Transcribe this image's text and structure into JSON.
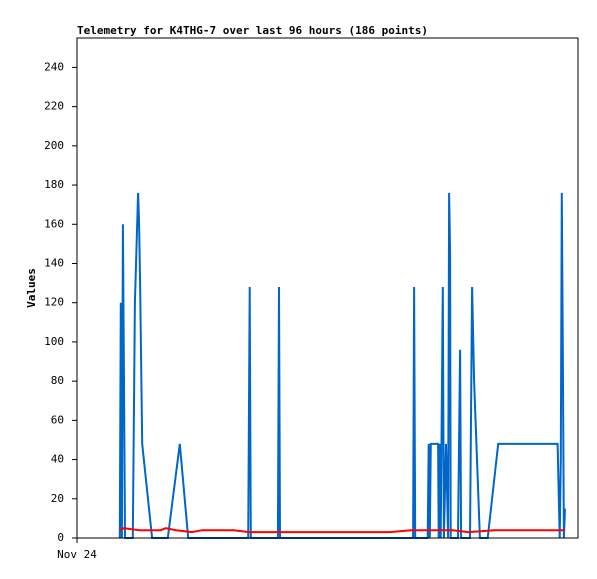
{
  "chart_data": {
    "type": "line",
    "title": "Telemetry for K4THG-7 over last 96 hours (186 points)",
    "y_label": "Values",
    "xlim": [
      0,
      96
    ],
    "xticks": [
      {
        "value": 0,
        "label": "Nov 24"
      }
    ],
    "ylim": [
      0,
      255
    ],
    "yticks": [
      0,
      20,
      40,
      60,
      80,
      100,
      120,
      140,
      160,
      180,
      200,
      220,
      240
    ],
    "grid": false,
    "series": [
      {
        "name": "series-1",
        "color": "#0066cc",
        "x": [
          8.2,
          8.4,
          8.6,
          8.8,
          9.0,
          9.2,
          10.7,
          11.1,
          11.7,
          11.9,
          12.1,
          12.5,
          14.4,
          17.4,
          19.7,
          21.3,
          32.8,
          33.1,
          33.3,
          38.5,
          38.7,
          38.9,
          64.4,
          64.6,
          64.8,
          67.2,
          67.4,
          67.6,
          67.8,
          69.2,
          69.3,
          69.5,
          69.7,
          70.1,
          70.3,
          70.7,
          71.1,
          71.3,
          71.5,
          71.6,
          73.0,
          73.4,
          73.6,
          75.3,
          75.7,
          76.1,
          77.2,
          78.7,
          80.7,
          92.1,
          92.5,
          92.7,
          92.9,
          93.1,
          93.3,
          93.5
        ],
        "values": [
          0,
          120,
          0,
          160,
          80,
          0,
          0,
          120,
          176,
          160,
          130,
          48,
          0,
          0,
          48,
          0,
          0,
          128,
          0,
          0,
          128,
          0,
          0,
          128,
          0,
          0,
          48,
          0,
          48,
          48,
          0,
          48,
          0,
          128,
          0,
          48,
          0,
          176,
          145,
          0,
          0,
          96,
          0,
          0,
          128,
          80,
          0,
          0,
          48,
          48,
          0,
          40,
          176,
          88,
          0,
          15
        ]
      },
      {
        "name": "series-2",
        "color": "#ff0000",
        "x": [
          8.2,
          9.0,
          12.0,
          16.0,
          17.0,
          19.0,
          22.0,
          24.0,
          30.0,
          33.0,
          38.0,
          44.0,
          60.0,
          64.0,
          72.0,
          75.0,
          80.0,
          93.5
        ],
        "values": [
          4,
          5,
          4,
          4,
          5,
          4,
          3,
          4,
          4,
          3,
          3,
          3,
          3,
          4,
          4,
          3,
          4,
          4
        ]
      }
    ]
  }
}
